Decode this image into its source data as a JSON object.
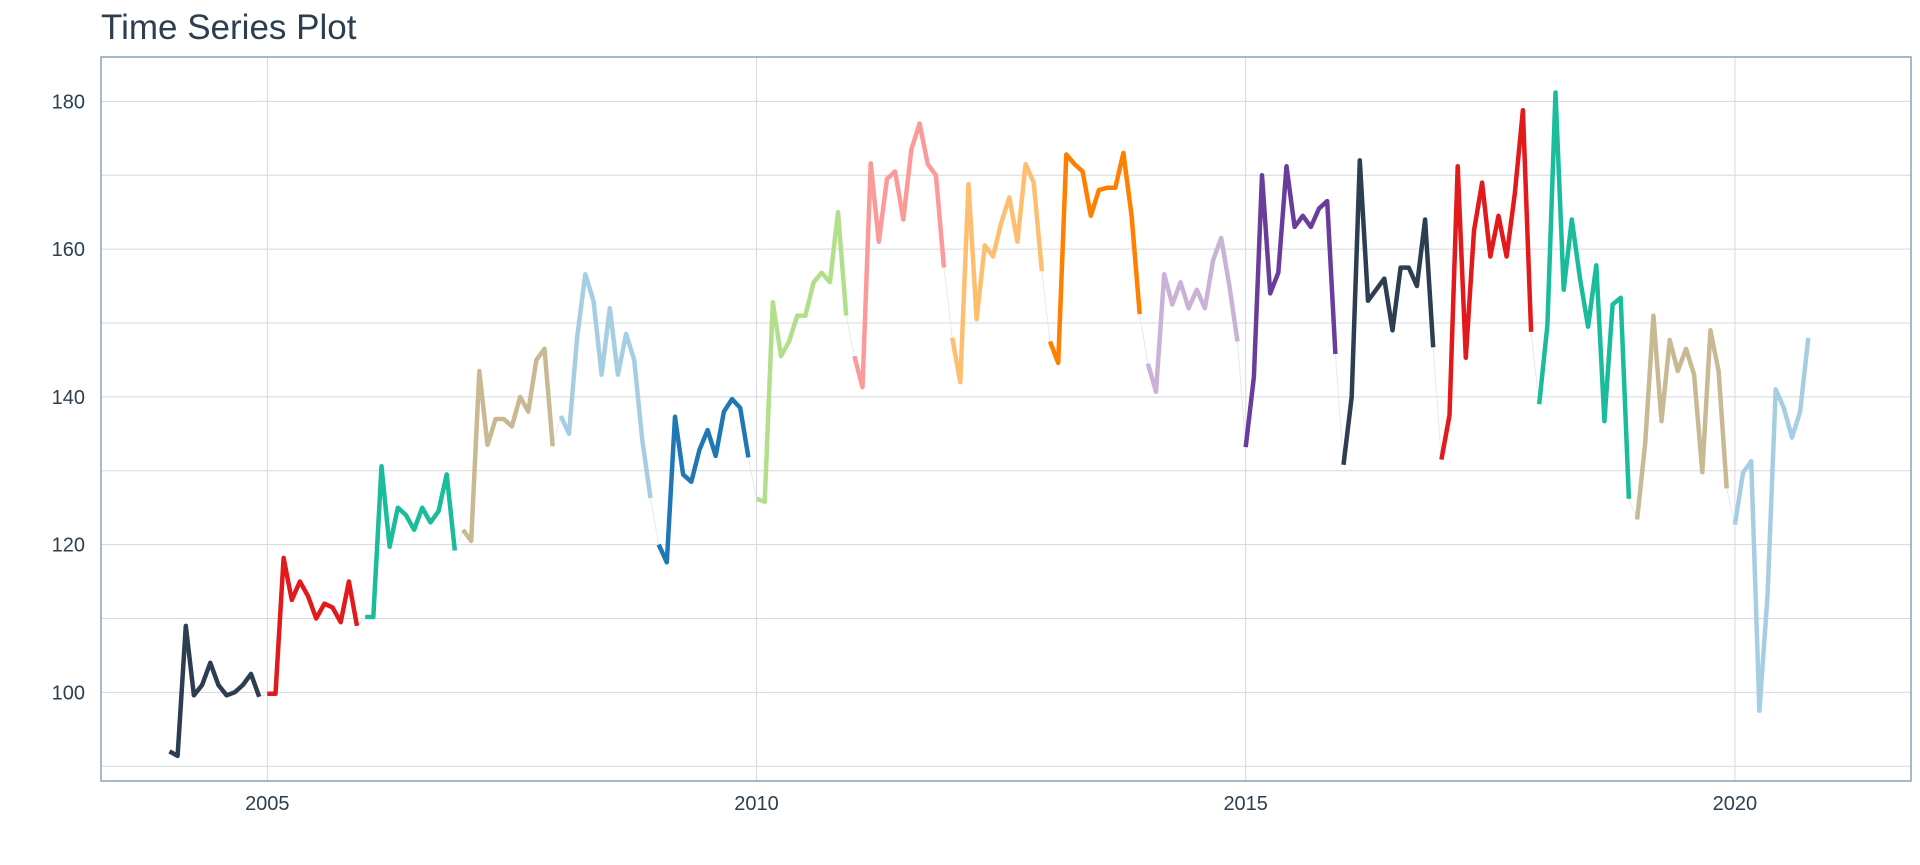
{
  "chart_data": {
    "type": "line",
    "title": "Time Series Plot",
    "xlabel": "",
    "ylabel": "",
    "xlim": [
      2003.3,
      2021.8
    ],
    "ylim": [
      88,
      186
    ],
    "x_ticks": [
      2005,
      2010,
      2015,
      2020
    ],
    "x_tick_labels": [
      "2005",
      "2010",
      "2015",
      "2020"
    ],
    "y_ticks": [
      100,
      120,
      140,
      160,
      180
    ],
    "y_tick_labels": [
      "100",
      "120",
      "140",
      "160",
      "180"
    ],
    "grid": true,
    "legend": "none",
    "series": [
      {
        "year": 2004,
        "color": "#2c3e50",
        "values": [
          92.0,
          91.4,
          109.0,
          99.6,
          101.0,
          104.0,
          101.0,
          99.6,
          100.0,
          101.0,
          102.5,
          99.4
        ]
      },
      {
        "year": 2005,
        "color": "#e31a1c",
        "values": [
          99.8,
          99.8,
          118.2,
          112.5,
          115.0,
          113.0,
          110.0,
          112.0,
          111.5,
          109.5,
          115.0,
          109.0
        ]
      },
      {
        "year": 2006,
        "color": "#1abc9c",
        "values": [
          110.2,
          110.2,
          130.6,
          119.7,
          125.0,
          124.0,
          122.0,
          125.0,
          123.0,
          124.5,
          129.5,
          119.2
        ]
      },
      {
        "year": 2007,
        "color": "#c8b993",
        "values": [
          122.0,
          120.5,
          143.5,
          133.5,
          137.0,
          137.0,
          136.0,
          140.0,
          138.0,
          145.0,
          146.5,
          133.3
        ]
      },
      {
        "year": 2008,
        "color": "#a6cee3",
        "values": [
          137.4,
          135.0,
          148.0,
          156.6,
          153.0,
          143.0,
          152.0,
          143.0,
          148.5,
          145.0,
          134.0,
          126.3
        ]
      },
      {
        "year": 2009,
        "color": "#1f78b4",
        "values": [
          120.0,
          117.6,
          137.3,
          129.5,
          128.5,
          132.8,
          135.5,
          132.0,
          138.0,
          139.7,
          138.5,
          131.8
        ]
      },
      {
        "year": 2010,
        "color": "#b2df8a",
        "values": [
          126.2,
          125.8,
          152.8,
          145.5,
          147.5,
          151.0,
          151.0,
          155.5,
          156.8,
          155.5,
          165.0,
          151.0
        ]
      },
      {
        "year": 2011,
        "color": "#fb9a99",
        "values": [
          145.5,
          141.3,
          171.6,
          161.0,
          169.5,
          170.5,
          164.0,
          173.5,
          177.0,
          171.5,
          170.0,
          157.5
        ]
      },
      {
        "year": 2012,
        "color": "#fdbf6f",
        "values": [
          148.0,
          142.0,
          168.8,
          150.5,
          160.5,
          159.0,
          163.5,
          167.0,
          161.0,
          171.5,
          169.0,
          157.0
        ]
      },
      {
        "year": 2013,
        "color": "#ff7f00",
        "values": [
          147.5,
          144.6,
          172.8,
          171.5,
          170.5,
          164.5,
          168.0,
          168.3,
          168.3,
          173.0,
          164.5,
          151.2
        ]
      },
      {
        "year": 2014,
        "color": "#cab2d6",
        "values": [
          144.5,
          140.7,
          156.6,
          152.5,
          155.5,
          152.0,
          154.5,
          152.0,
          158.5,
          161.5,
          155.0,
          147.5
        ]
      },
      {
        "year": 2015,
        "color": "#6a3d9a",
        "values": [
          133.2,
          142.7,
          170.0,
          154.0,
          156.8,
          171.2,
          163.0,
          164.5,
          163.0,
          165.5,
          166.5,
          145.8
        ]
      },
      {
        "year": 2016,
        "color": "#2c3e50",
        "values": [
          130.8,
          140.0,
          172.0,
          153.0,
          154.5,
          156.0,
          149.0,
          157.5,
          157.5,
          155.0,
          164.0,
          146.7
        ]
      },
      {
        "year": 2017,
        "color": "#e31a1c",
        "values": [
          131.5,
          137.5,
          171.2,
          145.3,
          162.5,
          169.0,
          159.0,
          164.5,
          159.0,
          167.5,
          178.8,
          148.8
        ]
      },
      {
        "year": 2018,
        "color": "#1abc9c",
        "values": [
          139.0,
          149.7,
          181.2,
          154.5,
          164.0,
          156.0,
          149.5,
          157.8,
          136.7,
          152.5,
          153.4,
          126.2
        ]
      },
      {
        "year": 2019,
        "color": "#c8b993",
        "values": [
          123.4,
          133.7,
          151.0,
          136.7,
          147.7,
          143.5,
          146.5,
          143.0,
          129.8,
          149.0,
          143.5,
          127.6
        ]
      },
      {
        "year": 2020,
        "color": "#a6cee3",
        "values": [
          122.7,
          129.7,
          131.3,
          97.5,
          113.0,
          141.0,
          138.5,
          134.5,
          138.0,
          148.0
        ]
      }
    ]
  }
}
